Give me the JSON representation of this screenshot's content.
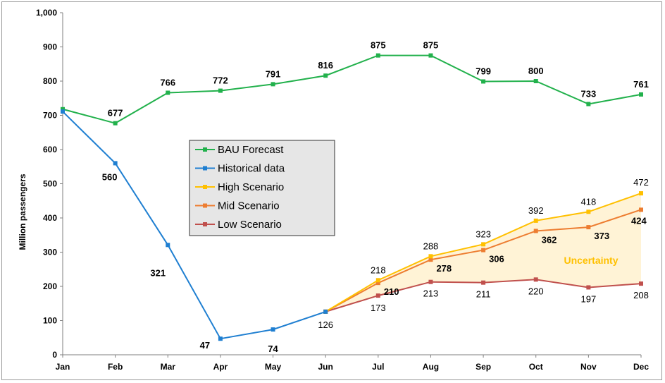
{
  "chart_data": {
    "type": "line",
    "categories": [
      "Jan",
      "Feb",
      "Mar",
      "Apr",
      "May",
      "Jun",
      "Jul",
      "Aug",
      "Sep",
      "Oct",
      "Nov",
      "Dec"
    ],
    "ylabel": "Million passengers",
    "ylim": [
      0,
      1000
    ],
    "yticks": [
      "0",
      "100",
      "200",
      "300",
      "400",
      "500",
      "600",
      "700",
      "800",
      "900",
      "1,000"
    ],
    "grid": false,
    "legend_position": "center-left",
    "series": [
      {
        "name": "BAU Forecast",
        "color": "#22b14c",
        "values": [
          718,
          677,
          766,
          772,
          791,
          816,
          875,
          875,
          799,
          800,
          733,
          761
        ],
        "labels": [
          "",
          "677",
          "766",
          "772",
          "791",
          "816",
          "875",
          "875",
          "799",
          "800",
          "733",
          "761"
        ],
        "label_bold": true,
        "label_pos": "above"
      },
      {
        "name": "Historical data",
        "color": "#1f7fd1",
        "values": [
          711,
          560,
          321,
          47,
          74,
          126,
          null,
          null,
          null,
          null,
          null,
          null
        ],
        "labels": [
          "",
          "560",
          "321",
          "47",
          "74",
          "126",
          "",
          "",
          "",
          "",
          "",
          ""
        ],
        "label_bold_mask": [
          false,
          true,
          true,
          true,
          true,
          false,
          false,
          false,
          false,
          false,
          false,
          false
        ],
        "label_pos": "below"
      },
      {
        "name": "High Scenario",
        "color": "#ffc000",
        "values": [
          null,
          null,
          null,
          null,
          null,
          126,
          218,
          288,
          323,
          392,
          418,
          472
        ],
        "labels": [
          "",
          "",
          "",
          "",
          "",
          "",
          "218",
          "288",
          "323",
          "392",
          "418",
          "472"
        ],
        "label_bold": false,
        "label_pos": "above"
      },
      {
        "name": "Mid Scenario",
        "color": "#ed7d31",
        "values": [
          null,
          null,
          null,
          null,
          null,
          126,
          210,
          278,
          306,
          362,
          373,
          424
        ],
        "labels": [
          "",
          "",
          "",
          "",
          "",
          "",
          "210",
          "278",
          "306",
          "362",
          "373",
          "424"
        ],
        "label_bold": true,
        "label_pos": "right"
      },
      {
        "name": "Low Scenario",
        "color": "#c0504d",
        "values": [
          null,
          null,
          null,
          null,
          null,
          126,
          173,
          213,
          211,
          220,
          197,
          208
        ],
        "labels": [
          "",
          "",
          "",
          "",
          "",
          "",
          "173",
          "213",
          "211",
          "220",
          "197",
          "208"
        ],
        "label_bold": false,
        "label_pos": "below"
      }
    ],
    "annotation": {
      "text": "Uncertainty",
      "color": "#ffc000",
      "fill": "#fff3d6"
    }
  }
}
